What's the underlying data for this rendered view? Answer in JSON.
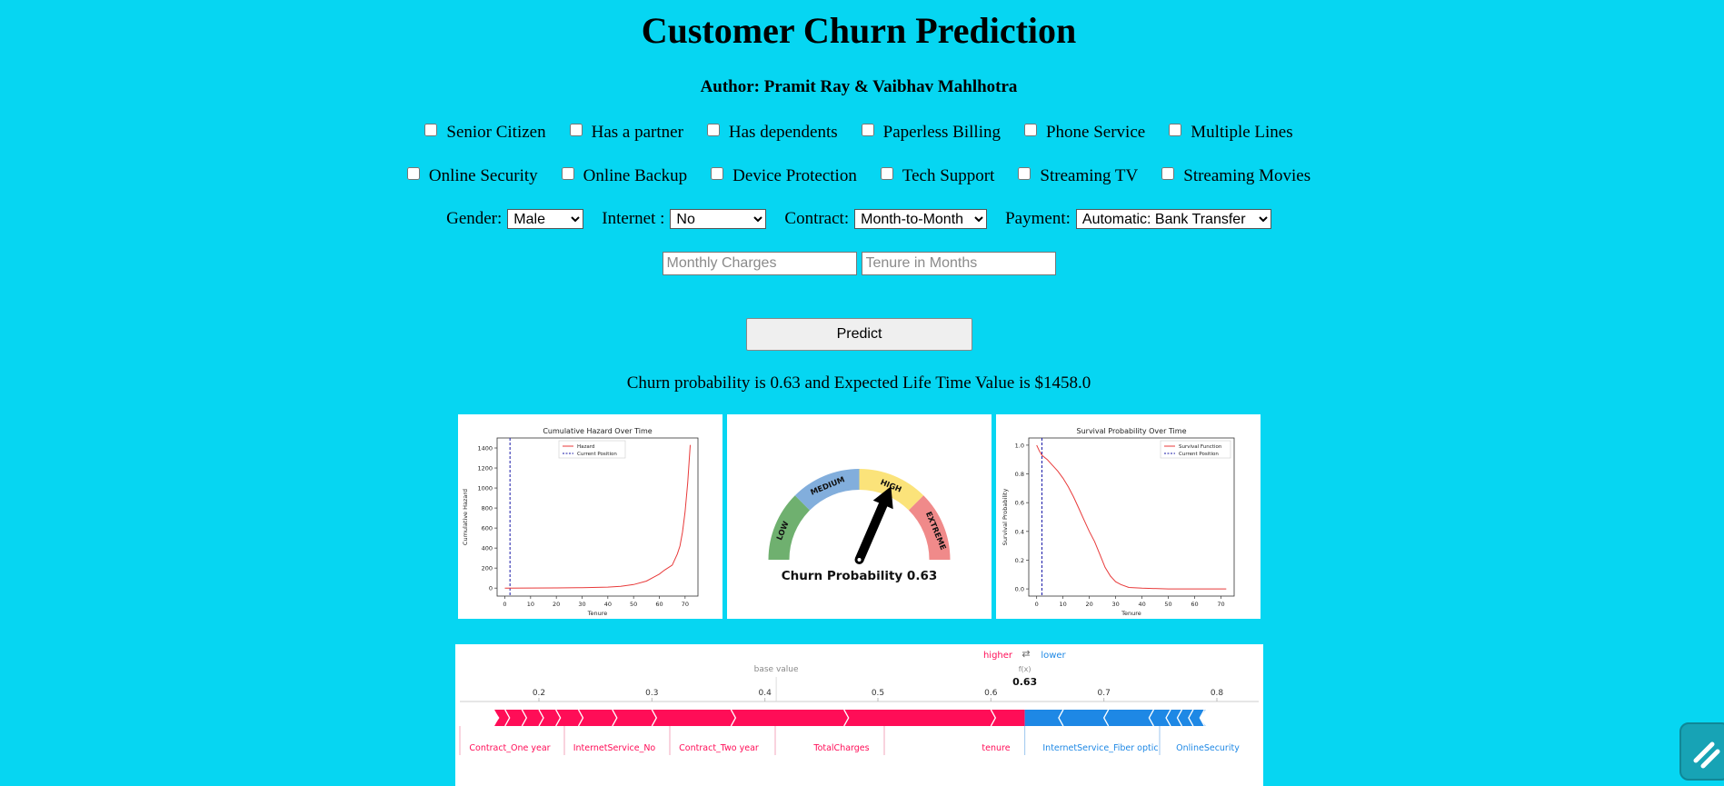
{
  "header": {
    "title": "Customer Churn Prediction",
    "author": "Author: Pramit Ray & Vaibhav Mahlhotra"
  },
  "checkboxes_row1": [
    {
      "label": "Senior Citizen",
      "checked": false
    },
    {
      "label": "Has a partner",
      "checked": false
    },
    {
      "label": "Has dependents",
      "checked": false
    },
    {
      "label": "Paperless Billing",
      "checked": false
    },
    {
      "label": "Phone Service",
      "checked": false
    },
    {
      "label": "Multiple Lines",
      "checked": false
    }
  ],
  "checkboxes_row2": [
    {
      "label": "Online Security",
      "checked": false
    },
    {
      "label": "Online Backup",
      "checked": false
    },
    {
      "label": "Device Protection",
      "checked": false
    },
    {
      "label": "Tech Support",
      "checked": false
    },
    {
      "label": "Streaming TV",
      "checked": false
    },
    {
      "label": "Streaming Movies",
      "checked": false
    }
  ],
  "selects": {
    "gender": {
      "label": "Gender:",
      "value": "Male"
    },
    "internet": {
      "label": "Internet :",
      "value": "No"
    },
    "contract": {
      "label": "Contract:",
      "value": "Month-to-Month"
    },
    "payment": {
      "label": "Payment:",
      "value": "Automatic: Bank Transfer"
    }
  },
  "inputs": {
    "monthly_charges": {
      "placeholder": "Monthly Charges",
      "value": ""
    },
    "tenure": {
      "placeholder": "Tenure in Months",
      "value": ""
    }
  },
  "predict_label": "Predict",
  "result_text": "Churn probability is 0.63 and Expected Life Time Value is $1458.0",
  "hazard_chart": {
    "chart_data": {
      "type": "line",
      "title": "Cumulative Hazard Over Time",
      "xlabel": "Tenure",
      "ylabel": "Cumulative Hazard",
      "xlim": [
        -3,
        75
      ],
      "ylim": [
        -80,
        1500
      ],
      "xticks": [
        "0",
        "10",
        "20",
        "30",
        "40",
        "50",
        "60",
        "70"
      ],
      "yticks": [
        "0",
        "200",
        "400",
        "600",
        "800",
        "1000",
        "1200",
        "1400"
      ],
      "legend": [
        "Hazard",
        "Current Position"
      ],
      "legend_position": "top-center",
      "current_position": 2,
      "series": [
        {
          "name": "Hazard",
          "color": "#e83a3a",
          "x": [
            0,
            10,
            20,
            30,
            40,
            45,
            50,
            55,
            60,
            62,
            65,
            67,
            68,
            69,
            70,
            71,
            72
          ],
          "y": [
            0,
            1,
            2,
            4,
            10,
            18,
            35,
            70,
            140,
            180,
            230,
            340,
            420,
            560,
            760,
            1050,
            1430
          ]
        }
      ]
    }
  },
  "gauge": {
    "segments": [
      "LOW",
      "MEDIUM",
      "HIGH",
      "EXTREME"
    ],
    "colors": [
      "#6fb06f",
      "#82aedc",
      "#fbe37a",
      "#f08a8a"
    ],
    "value": 0.63,
    "caption": "Churn Probability 0.63"
  },
  "survival_chart": {
    "chart_data": {
      "type": "line",
      "title": "Survival Probability Over Time",
      "xlabel": "Tenure",
      "ylabel": "Survival Probability",
      "xlim": [
        -3,
        75
      ],
      "ylim": [
        -0.05,
        1.05
      ],
      "xticks": [
        "0",
        "10",
        "20",
        "30",
        "40",
        "50",
        "60",
        "70"
      ],
      "yticks": [
        "0.0",
        "0.2",
        "0.4",
        "0.6",
        "0.8",
        "1.0"
      ],
      "legend": [
        "Survival Function",
        "Current Position"
      ],
      "legend_position": "top-right",
      "current_position": 2,
      "series": [
        {
          "name": "Survival Function",
          "color": "#e83a3a",
          "x": [
            0,
            1,
            2,
            4,
            6,
            8,
            10,
            12,
            14,
            16,
            18,
            20,
            22,
            24,
            26,
            28,
            30,
            32,
            35,
            40,
            50,
            60,
            72
          ],
          "y": [
            1.0,
            0.96,
            0.93,
            0.9,
            0.86,
            0.82,
            0.77,
            0.71,
            0.64,
            0.56,
            0.48,
            0.4,
            0.33,
            0.24,
            0.15,
            0.09,
            0.05,
            0.03,
            0.01,
            0.005,
            0.0,
            0.0,
            0.0
          ]
        }
      ]
    }
  },
  "shap": {
    "legend_higher": "higher",
    "legend_arrows": "⇄",
    "legend_lower": "lower",
    "base_value_label": "base value",
    "fx_label": "f(x)",
    "fx_value": "0.63",
    "ticks": [
      "0.2",
      "0.3",
      "0.4",
      "0.5",
      "0.6",
      "0.7",
      "0.8"
    ],
    "positive_color": "#ff0d57",
    "negative_color": "#1e88e5",
    "features_positive": [
      "Contract_One year",
      "InternetService_No",
      "Contract_Two year",
      "TotalCharges",
      "tenure"
    ],
    "features_negative": [
      "InternetService_Fiber optic",
      "OnlineSecurity"
    ]
  }
}
